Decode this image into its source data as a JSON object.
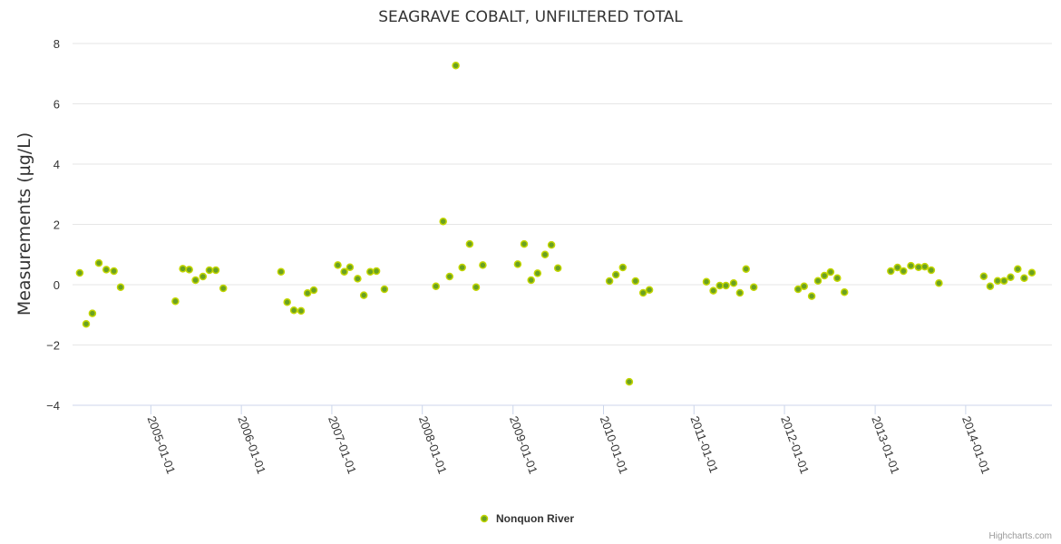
{
  "chart_data": {
    "type": "scatter",
    "title": "SEAGRAVE COBALT, UNFILTERED TOTAL",
    "xlabel": "",
    "ylabel": "Measurements (µg/L)",
    "ylim": [
      -4,
      8
    ],
    "yticks": [
      "−4",
      "−2",
      "0",
      "2",
      "4",
      "6",
      "8"
    ],
    "ytick_values": [
      -4,
      -2,
      0,
      2,
      4,
      6,
      8
    ],
    "xlim": [
      "2004-02-20",
      "2014-12-15"
    ],
    "x_tick_labels": [
      "2005-01-01",
      "2006-01-01",
      "2007-01-01",
      "2008-01-01",
      "2009-01-01",
      "2010-01-01",
      "2011-01-01",
      "2012-01-01",
      "2013-01-01",
      "2014-01-01"
    ],
    "legend_position": "bottom-center",
    "grid": true,
    "series": [
      {
        "name": "Nonquon River",
        "color": "#6aa121",
        "x": [
          "2004-03-20",
          "2004-04-15",
          "2004-05-10",
          "2004-06-05",
          "2004-07-05",
          "2004-08-05",
          "2004-09-01",
          "2005-04-10",
          "2005-05-10",
          "2005-06-05",
          "2005-06-30",
          "2005-07-30",
          "2005-08-25",
          "2005-09-20",
          "2005-10-20",
          "2006-06-10",
          "2006-07-05",
          "2006-08-01",
          "2006-08-30",
          "2006-09-25",
          "2006-10-20",
          "2007-01-25",
          "2007-02-20",
          "2007-03-15",
          "2007-04-15",
          "2007-05-10",
          "2007-06-05",
          "2007-06-30",
          "2007-08-01",
          "2008-02-25",
          "2008-03-25",
          "2008-04-20",
          "2008-05-15",
          "2008-06-10",
          "2008-07-10",
          "2008-08-05",
          "2008-09-01",
          "2009-01-20",
          "2009-02-15",
          "2009-03-15",
          "2009-04-10",
          "2009-05-10",
          "2009-06-05",
          "2009-07-01",
          "2010-01-25",
          "2010-02-20",
          "2010-03-20",
          "2010-04-15",
          "2010-05-10",
          "2010-06-10",
          "2010-07-05",
          "2011-02-20",
          "2011-03-20",
          "2011-04-15",
          "2011-05-10",
          "2011-06-10",
          "2011-07-05",
          "2011-07-30",
          "2011-08-30",
          "2012-02-25",
          "2012-03-20",
          "2012-04-20",
          "2012-05-15",
          "2012-06-10",
          "2012-07-05",
          "2012-08-01",
          "2012-08-30",
          "2013-03-05",
          "2013-04-01",
          "2013-04-25",
          "2013-05-25",
          "2013-06-25",
          "2013-07-20",
          "2013-08-15",
          "2013-09-15",
          "2014-03-15",
          "2014-04-10",
          "2014-05-10",
          "2014-06-05",
          "2014-07-01",
          "2014-07-30",
          "2014-08-25",
          "2014-09-25"
        ],
        "y": [
          0.39,
          -1.3,
          -0.95,
          0.72,
          0.5,
          0.45,
          -0.08,
          -0.55,
          0.53,
          0.5,
          0.15,
          0.27,
          0.48,
          0.48,
          -0.12,
          0.43,
          -0.58,
          -0.85,
          -0.87,
          -0.28,
          -0.18,
          0.65,
          0.43,
          0.58,
          0.2,
          -0.35,
          0.43,
          0.45,
          -0.15,
          -0.05,
          2.1,
          0.27,
          7.27,
          0.57,
          1.35,
          -0.08,
          0.65,
          0.68,
          1.35,
          0.15,
          0.38,
          1.0,
          1.32,
          0.55,
          0.12,
          0.33,
          0.57,
          -3.22,
          0.12,
          -0.27,
          -0.17,
          0.1,
          -0.2,
          -0.03,
          -0.03,
          0.05,
          -0.27,
          0.52,
          -0.08,
          -0.15,
          -0.05,
          -0.38,
          0.13,
          0.3,
          0.42,
          0.22,
          -0.25,
          0.45,
          0.57,
          0.45,
          0.63,
          0.58,
          0.6,
          0.48,
          0.05,
          0.28,
          -0.05,
          0.13,
          0.13,
          0.25,
          0.52,
          0.22,
          0.4
        ]
      }
    ]
  },
  "credits": "Highcharts.com"
}
